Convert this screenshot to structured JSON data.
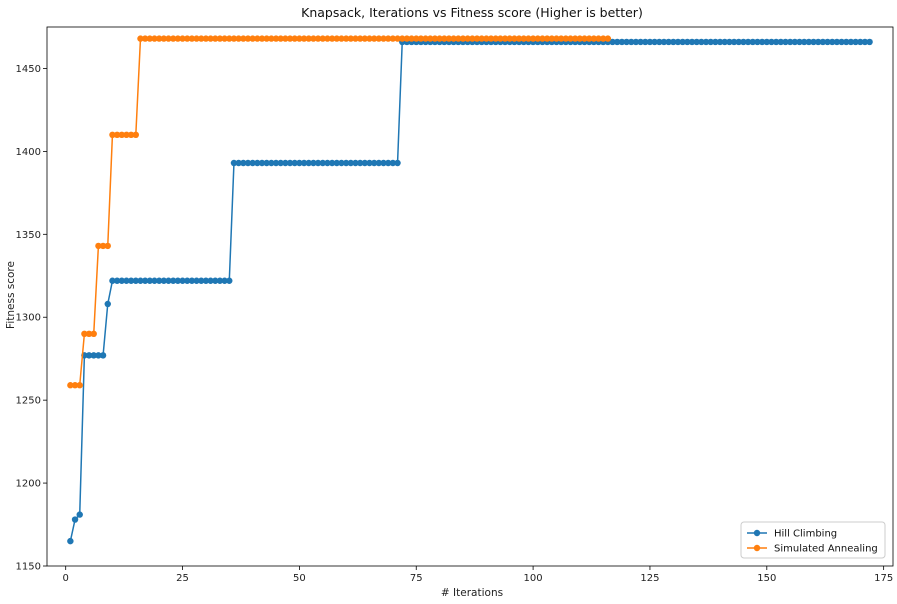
{
  "chart_data": {
    "type": "line",
    "title": "Knapsack, Iterations vs Fitness score (Higher is better)",
    "xlabel": "# Iterations",
    "ylabel": "Fitness score",
    "xlim": [
      -4,
      177
    ],
    "ylim": [
      1150,
      1475
    ],
    "xticks": [
      0,
      25,
      50,
      75,
      100,
      125,
      150,
      175
    ],
    "yticks": [
      1150,
      1200,
      1250,
      1300,
      1350,
      1400,
      1450
    ],
    "grid": false,
    "legend_position": "lower-right",
    "series": [
      {
        "name": "Hill Climbing",
        "color": "#1f77b4",
        "marker": "circle",
        "steps": [
          {
            "x_from": 1,
            "x_to": 1,
            "y": 1165
          },
          {
            "x_from": 2,
            "x_to": 2,
            "y": 1178
          },
          {
            "x_from": 3,
            "x_to": 3,
            "y": 1181
          },
          {
            "x_from": 4,
            "x_to": 8,
            "y": 1277
          },
          {
            "x_from": 9,
            "x_to": 9,
            "y": 1308
          },
          {
            "x_from": 10,
            "x_to": 35,
            "y": 1322
          },
          {
            "x_from": 36,
            "x_to": 71,
            "y": 1393
          },
          {
            "x_from": 72,
            "x_to": 172,
            "y": 1466
          }
        ]
      },
      {
        "name": "Simulated Annealing",
        "color": "#ff7f0e",
        "marker": "circle",
        "steps": [
          {
            "x_from": 1,
            "x_to": 3,
            "y": 1259
          },
          {
            "x_from": 4,
            "x_to": 6,
            "y": 1290
          },
          {
            "x_from": 7,
            "x_to": 9,
            "y": 1343
          },
          {
            "x_from": 10,
            "x_to": 15,
            "y": 1410
          },
          {
            "x_from": 16,
            "x_to": 116,
            "y": 1468
          }
        ]
      }
    ]
  }
}
